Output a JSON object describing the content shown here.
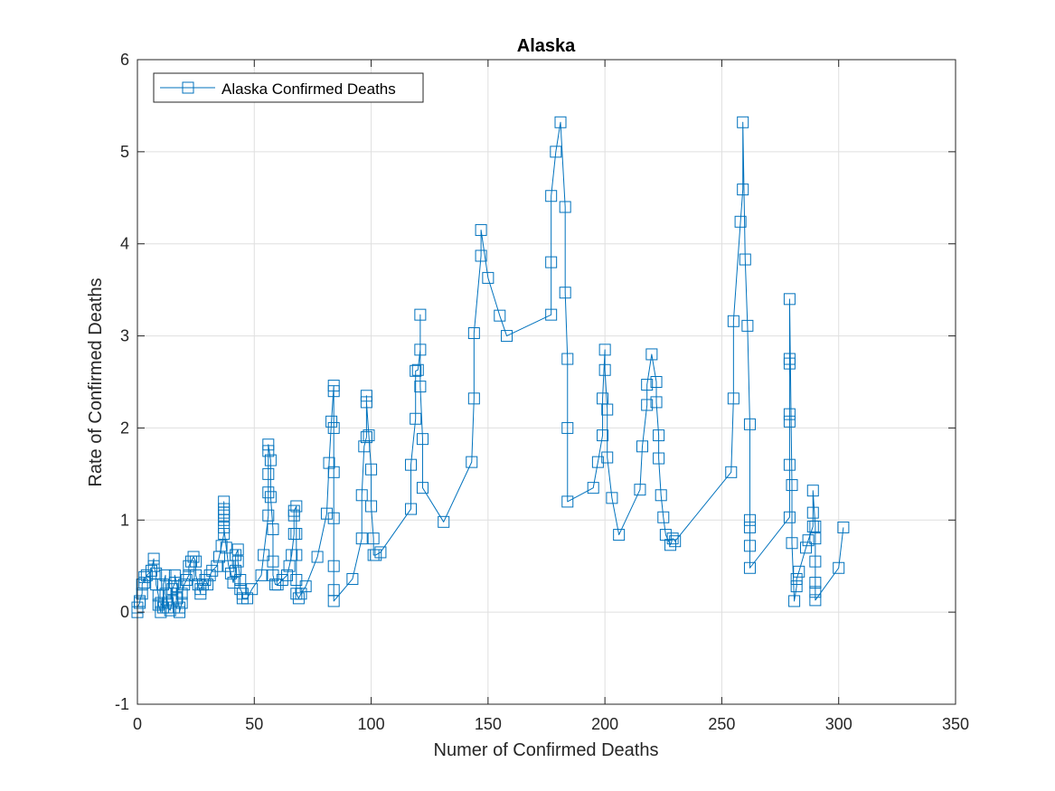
{
  "chart_data": {
    "type": "line",
    "title": "Alaska",
    "xlabel": "Numer of Confirmed Deaths",
    "ylabel": "Rate of Confirmed Deaths",
    "xlim": [
      0,
      350
    ],
    "ylim": [
      -1,
      6
    ],
    "xticks": [
      0,
      50,
      100,
      150,
      200,
      250,
      300,
      350
    ],
    "yticks": [
      -1,
      0,
      1,
      2,
      3,
      4,
      5,
      6
    ],
    "grid": true,
    "legend_position": "top-left",
    "series": [
      {
        "name": "Alaska Confirmed Deaths",
        "color": "#0072bd",
        "marker": "square",
        "points": [
          [
            0,
            0
          ],
          [
            0,
            0.05
          ],
          [
            1,
            0.1
          ],
          [
            1,
            0.12
          ],
          [
            2,
            0.2
          ],
          [
            2,
            0.3
          ],
          [
            3,
            0.38
          ],
          [
            3,
            0.32
          ],
          [
            4,
            0.4
          ],
          [
            6,
            0.45
          ],
          [
            7,
            0.58
          ],
          [
            7,
            0.5
          ],
          [
            8,
            0.42
          ],
          [
            8,
            0.3
          ],
          [
            9,
            0.18
          ],
          [
            9,
            0.08
          ],
          [
            10,
            0.0
          ],
          [
            10,
            0.1
          ],
          [
            11,
            0.05
          ],
          [
            11,
            0.3
          ],
          [
            12,
            0.4
          ],
          [
            12,
            0.2
          ],
          [
            13,
            0.1
          ],
          [
            13,
            0.05
          ],
          [
            14,
            0.02
          ],
          [
            15,
            0.12
          ],
          [
            15,
            0.25
          ],
          [
            16,
            0.32
          ],
          [
            16,
            0.4
          ],
          [
            17,
            0.28
          ],
          [
            17,
            0.15
          ],
          [
            18,
            0.05
          ],
          [
            18,
            0.0
          ],
          [
            19,
            0.1
          ],
          [
            19,
            0.2
          ],
          [
            20,
            0.3
          ],
          [
            21,
            0.35
          ],
          [
            22,
            0.4
          ],
          [
            22,
            0.5
          ],
          [
            23,
            0.55
          ],
          [
            24,
            0.6
          ],
          [
            25,
            0.55
          ],
          [
            25,
            0.4
          ],
          [
            26,
            0.3
          ],
          [
            27,
            0.2
          ],
          [
            27,
            0.25
          ],
          [
            28,
            0.3
          ],
          [
            29,
            0.35
          ],
          [
            30,
            0.3
          ],
          [
            31,
            0.4
          ],
          [
            32,
            0.45
          ],
          [
            34,
            0.5
          ],
          [
            35,
            0.6
          ],
          [
            36,
            0.72
          ],
          [
            37,
            0.85
          ],
          [
            37,
            1.0
          ],
          [
            37,
            1.08
          ],
          [
            37,
            1.2
          ],
          [
            37,
            1.12
          ],
          [
            37,
            1.05
          ],
          [
            37,
            0.92
          ],
          [
            38,
            0.7
          ],
          [
            39,
            0.5
          ],
          [
            40,
            0.42
          ],
          [
            41,
            0.32
          ],
          [
            42,
            0.45
          ],
          [
            42,
            0.62
          ],
          [
            43,
            0.68
          ],
          [
            43,
            0.55
          ],
          [
            44,
            0.35
          ],
          [
            44,
            0.25
          ],
          [
            45,
            0.2
          ],
          [
            45,
            0.15
          ],
          [
            47,
            0.15
          ],
          [
            49,
            0.25
          ],
          [
            53,
            0.4
          ],
          [
            54,
            0.62
          ],
          [
            56,
            1.05
          ],
          [
            56,
            1.3
          ],
          [
            56,
            1.5
          ],
          [
            56,
            1.75
          ],
          [
            56,
            1.82
          ],
          [
            57,
            1.65
          ],
          [
            57,
            1.25
          ],
          [
            58,
            0.9
          ],
          [
            58,
            0.55
          ],
          [
            58,
            0.4
          ],
          [
            59,
            0.3
          ],
          [
            60,
            0.3
          ],
          [
            62,
            0.35
          ],
          [
            64,
            0.4
          ],
          [
            65,
            0.5
          ],
          [
            66,
            0.62
          ],
          [
            67,
            0.85
          ],
          [
            67,
            1.05
          ],
          [
            67,
            1.1
          ],
          [
            68,
            1.15
          ],
          [
            68,
            0.85
          ],
          [
            68,
            0.62
          ],
          [
            68,
            0.35
          ],
          [
            68,
            0.2
          ],
          [
            69,
            0.15
          ],
          [
            70,
            0.2
          ],
          [
            72,
            0.28
          ],
          [
            77,
            0.6
          ],
          [
            81,
            1.07
          ],
          [
            82,
            1.62
          ],
          [
            83,
            2.07
          ],
          [
            84,
            2.46
          ],
          [
            84,
            2.4
          ],
          [
            84,
            2.0
          ],
          [
            84,
            1.52
          ],
          [
            84,
            1.02
          ],
          [
            84,
            0.5
          ],
          [
            84,
            0.24
          ],
          [
            84,
            0.12
          ],
          [
            92,
            0.36
          ],
          [
            96,
            0.8
          ],
          [
            96,
            1.27
          ],
          [
            97,
            1.8
          ],
          [
            98,
            1.9
          ],
          [
            98,
            2.35
          ],
          [
            98,
            2.28
          ],
          [
            99,
            1.92
          ],
          [
            100,
            1.55
          ],
          [
            100,
            1.15
          ],
          [
            101,
            0.8
          ],
          [
            101,
            0.62
          ],
          [
            102,
            0.62
          ],
          [
            104,
            0.65
          ],
          [
            117,
            1.12
          ],
          [
            117,
            1.6
          ],
          [
            119,
            2.1
          ],
          [
            119,
            2.62
          ],
          [
            120,
            2.63
          ],
          [
            121,
            2.85
          ],
          [
            121,
            3.23
          ],
          [
            121,
            2.45
          ],
          [
            122,
            1.88
          ],
          [
            122,
            1.35
          ],
          [
            131,
            0.98
          ],
          [
            143,
            1.63
          ],
          [
            144,
            2.32
          ],
          [
            144,
            3.03
          ],
          [
            147,
            3.87
          ],
          [
            147,
            4.15
          ],
          [
            150,
            3.63
          ],
          [
            155,
            3.22
          ],
          [
            158,
            3.0
          ],
          [
            177,
            3.23
          ],
          [
            177,
            3.8
          ],
          [
            177,
            4.52
          ],
          [
            179,
            5.0
          ],
          [
            181,
            5.32
          ],
          [
            183,
            4.4
          ],
          [
            183,
            3.47
          ],
          [
            184,
            2.75
          ],
          [
            184,
            2.0
          ],
          [
            184,
            1.2
          ],
          [
            195,
            1.35
          ],
          [
            197,
            1.63
          ],
          [
            199,
            1.92
          ],
          [
            199,
            2.32
          ],
          [
            200,
            2.85
          ],
          [
            200,
            2.63
          ],
          [
            201,
            2.2
          ],
          [
            201,
            1.68
          ],
          [
            203,
            1.24
          ],
          [
            206,
            0.84
          ],
          [
            215,
            1.33
          ],
          [
            216,
            1.8
          ],
          [
            218,
            2.25
          ],
          [
            218,
            2.47
          ],
          [
            220,
            2.8
          ],
          [
            222,
            2.5
          ],
          [
            222,
            2.28
          ],
          [
            223,
            1.92
          ],
          [
            223,
            1.67
          ],
          [
            224,
            1.27
          ],
          [
            225,
            1.03
          ],
          [
            226,
            0.84
          ],
          [
            228,
            0.73
          ],
          [
            229,
            0.8
          ],
          [
            230,
            0.77
          ],
          [
            254,
            1.52
          ],
          [
            255,
            2.32
          ],
          [
            255,
            3.16
          ],
          [
            258,
            4.24
          ],
          [
            259,
            4.59
          ],
          [
            259,
            5.32
          ],
          [
            260,
            3.83
          ],
          [
            261,
            3.11
          ],
          [
            262,
            2.04
          ],
          [
            262,
            1.0
          ],
          [
            262,
            0.92
          ],
          [
            262,
            0.72
          ],
          [
            262,
            0.48
          ],
          [
            279,
            1.03
          ],
          [
            279,
            1.6
          ],
          [
            279,
            2.07
          ],
          [
            279,
            2.15
          ],
          [
            279,
            2.7
          ],
          [
            279,
            2.75
          ],
          [
            279,
            3.4
          ],
          [
            280,
            1.38
          ],
          [
            280,
            0.75
          ],
          [
            281,
            0.12
          ],
          [
            282,
            0.28
          ],
          [
            282,
            0.36
          ],
          [
            283,
            0.44
          ],
          [
            286,
            0.7
          ],
          [
            287,
            0.78
          ],
          [
            289,
            0.93
          ],
          [
            289,
            1.08
          ],
          [
            289,
            1.32
          ],
          [
            290,
            0.93
          ],
          [
            290,
            0.8
          ],
          [
            290,
            0.55
          ],
          [
            290,
            0.32
          ],
          [
            290,
            0.22
          ],
          [
            290,
            0.13
          ],
          [
            300,
            0.48
          ],
          [
            302,
            0.92
          ]
        ]
      }
    ]
  }
}
